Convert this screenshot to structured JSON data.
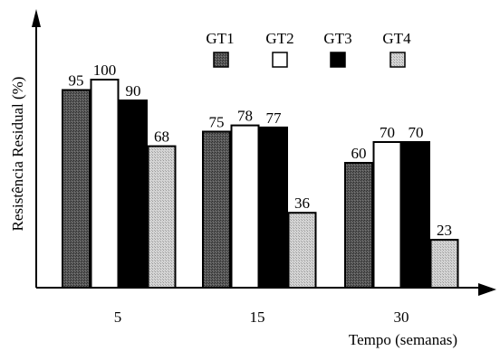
{
  "colors": {
    "GT1": "#555555",
    "GT2": "#ffffff",
    "GT3": "#000000",
    "GT4": "#c8c8c8",
    "axis": "#000000"
  },
  "chart_data": {
    "type": "bar",
    "categories": [
      "5",
      "15",
      "30"
    ],
    "series": [
      {
        "name": "GT1",
        "values": [
          95,
          75,
          60
        ]
      },
      {
        "name": "GT2",
        "values": [
          100,
          78,
          70
        ]
      },
      {
        "name": "GT3",
        "values": [
          90,
          77,
          70
        ]
      },
      {
        "name": "GT4",
        "values": [
          68,
          36,
          23
        ]
      }
    ],
    "xlabel": "Tempo (semanas)",
    "ylabel": "Resistência Residual (%)",
    "ylim": [
      0,
      100
    ],
    "y_ticks_shown": false,
    "grid": false,
    "legend_position": "top-right",
    "data_labels": true
  }
}
